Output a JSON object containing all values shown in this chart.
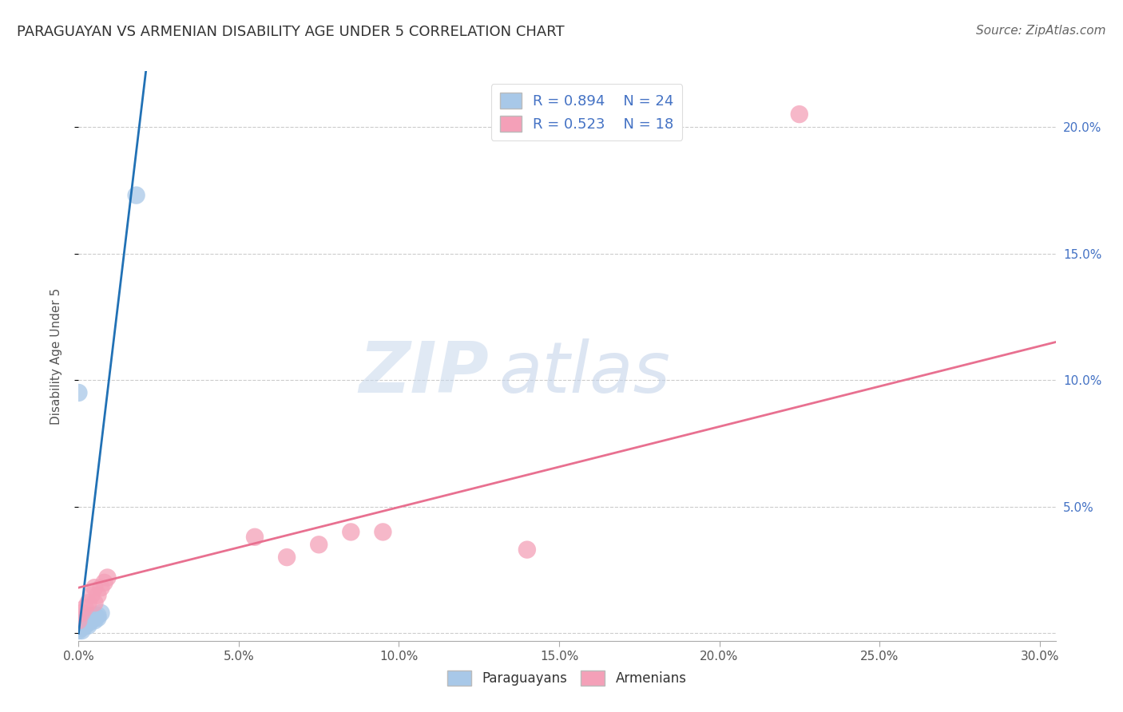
{
  "title": "PARAGUAYAN VS ARMENIAN DISABILITY AGE UNDER 5 CORRELATION CHART",
  "source": "Source: ZipAtlas.com",
  "ylabel": "Disability Age Under 5",
  "xlim": [
    0.0,
    0.305
  ],
  "ylim": [
    -0.003,
    0.222
  ],
  "ytick_values": [
    0.0,
    0.05,
    0.1,
    0.15,
    0.2
  ],
  "ytick_right_labels": [
    "",
    "5.0%",
    "10.0%",
    "15.0%",
    "20.0%"
  ],
  "xtick_values": [
    0.0,
    0.05,
    0.1,
    0.15,
    0.2,
    0.25,
    0.3
  ],
  "xtick_labels": [
    "0.0%",
    "5.0%",
    "10.0%",
    "15.0%",
    "20.0%",
    "25.0%",
    "30.0%"
  ],
  "blue_scatter_x": [
    0.0,
    0.0,
    0.001,
    0.001,
    0.001,
    0.001,
    0.002,
    0.002,
    0.002,
    0.003,
    0.003,
    0.003,
    0.003,
    0.004,
    0.004,
    0.004,
    0.005,
    0.005,
    0.005,
    0.006,
    0.006,
    0.007,
    0.0,
    0.018
  ],
  "blue_scatter_y": [
    0.001,
    0.002,
    0.001,
    0.002,
    0.003,
    0.004,
    0.003,
    0.004,
    0.005,
    0.003,
    0.004,
    0.005,
    0.006,
    0.005,
    0.006,
    0.007,
    0.005,
    0.006,
    0.007,
    0.006,
    0.007,
    0.008,
    0.095,
    0.173
  ],
  "pink_scatter_x": [
    0.0,
    0.001,
    0.002,
    0.003,
    0.004,
    0.005,
    0.005,
    0.006,
    0.007,
    0.008,
    0.009,
    0.055,
    0.065,
    0.075,
    0.085,
    0.095,
    0.14,
    0.225
  ],
  "pink_scatter_y": [
    0.005,
    0.008,
    0.01,
    0.012,
    0.015,
    0.012,
    0.018,
    0.015,
    0.018,
    0.02,
    0.022,
    0.038,
    0.03,
    0.035,
    0.04,
    0.04,
    0.033,
    0.205
  ],
  "blue_trend_x": [
    0.0,
    0.021
  ],
  "blue_trend_y": [
    0.0,
    0.222
  ],
  "pink_trend_x": [
    0.0,
    0.305
  ],
  "pink_trend_y": [
    0.018,
    0.115
  ],
  "blue_R": "0.894",
  "blue_N": "24",
  "pink_R": "0.523",
  "pink_N": "18",
  "blue_scatter_color": "#a8c8e8",
  "blue_line_color": "#2171b5",
  "pink_scatter_color": "#f4a0b8",
  "pink_line_color": "#e87090",
  "watermark_bold": "ZIP",
  "watermark_light": "atlas",
  "watermark_color_bold": "#c8d8ec",
  "watermark_color_light": "#c0d0e8",
  "bg_color": "#ffffff",
  "grid_color": "#cccccc",
  "title_color": "#333333",
  "right_tick_color": "#4472c4",
  "source_color": "#666666"
}
